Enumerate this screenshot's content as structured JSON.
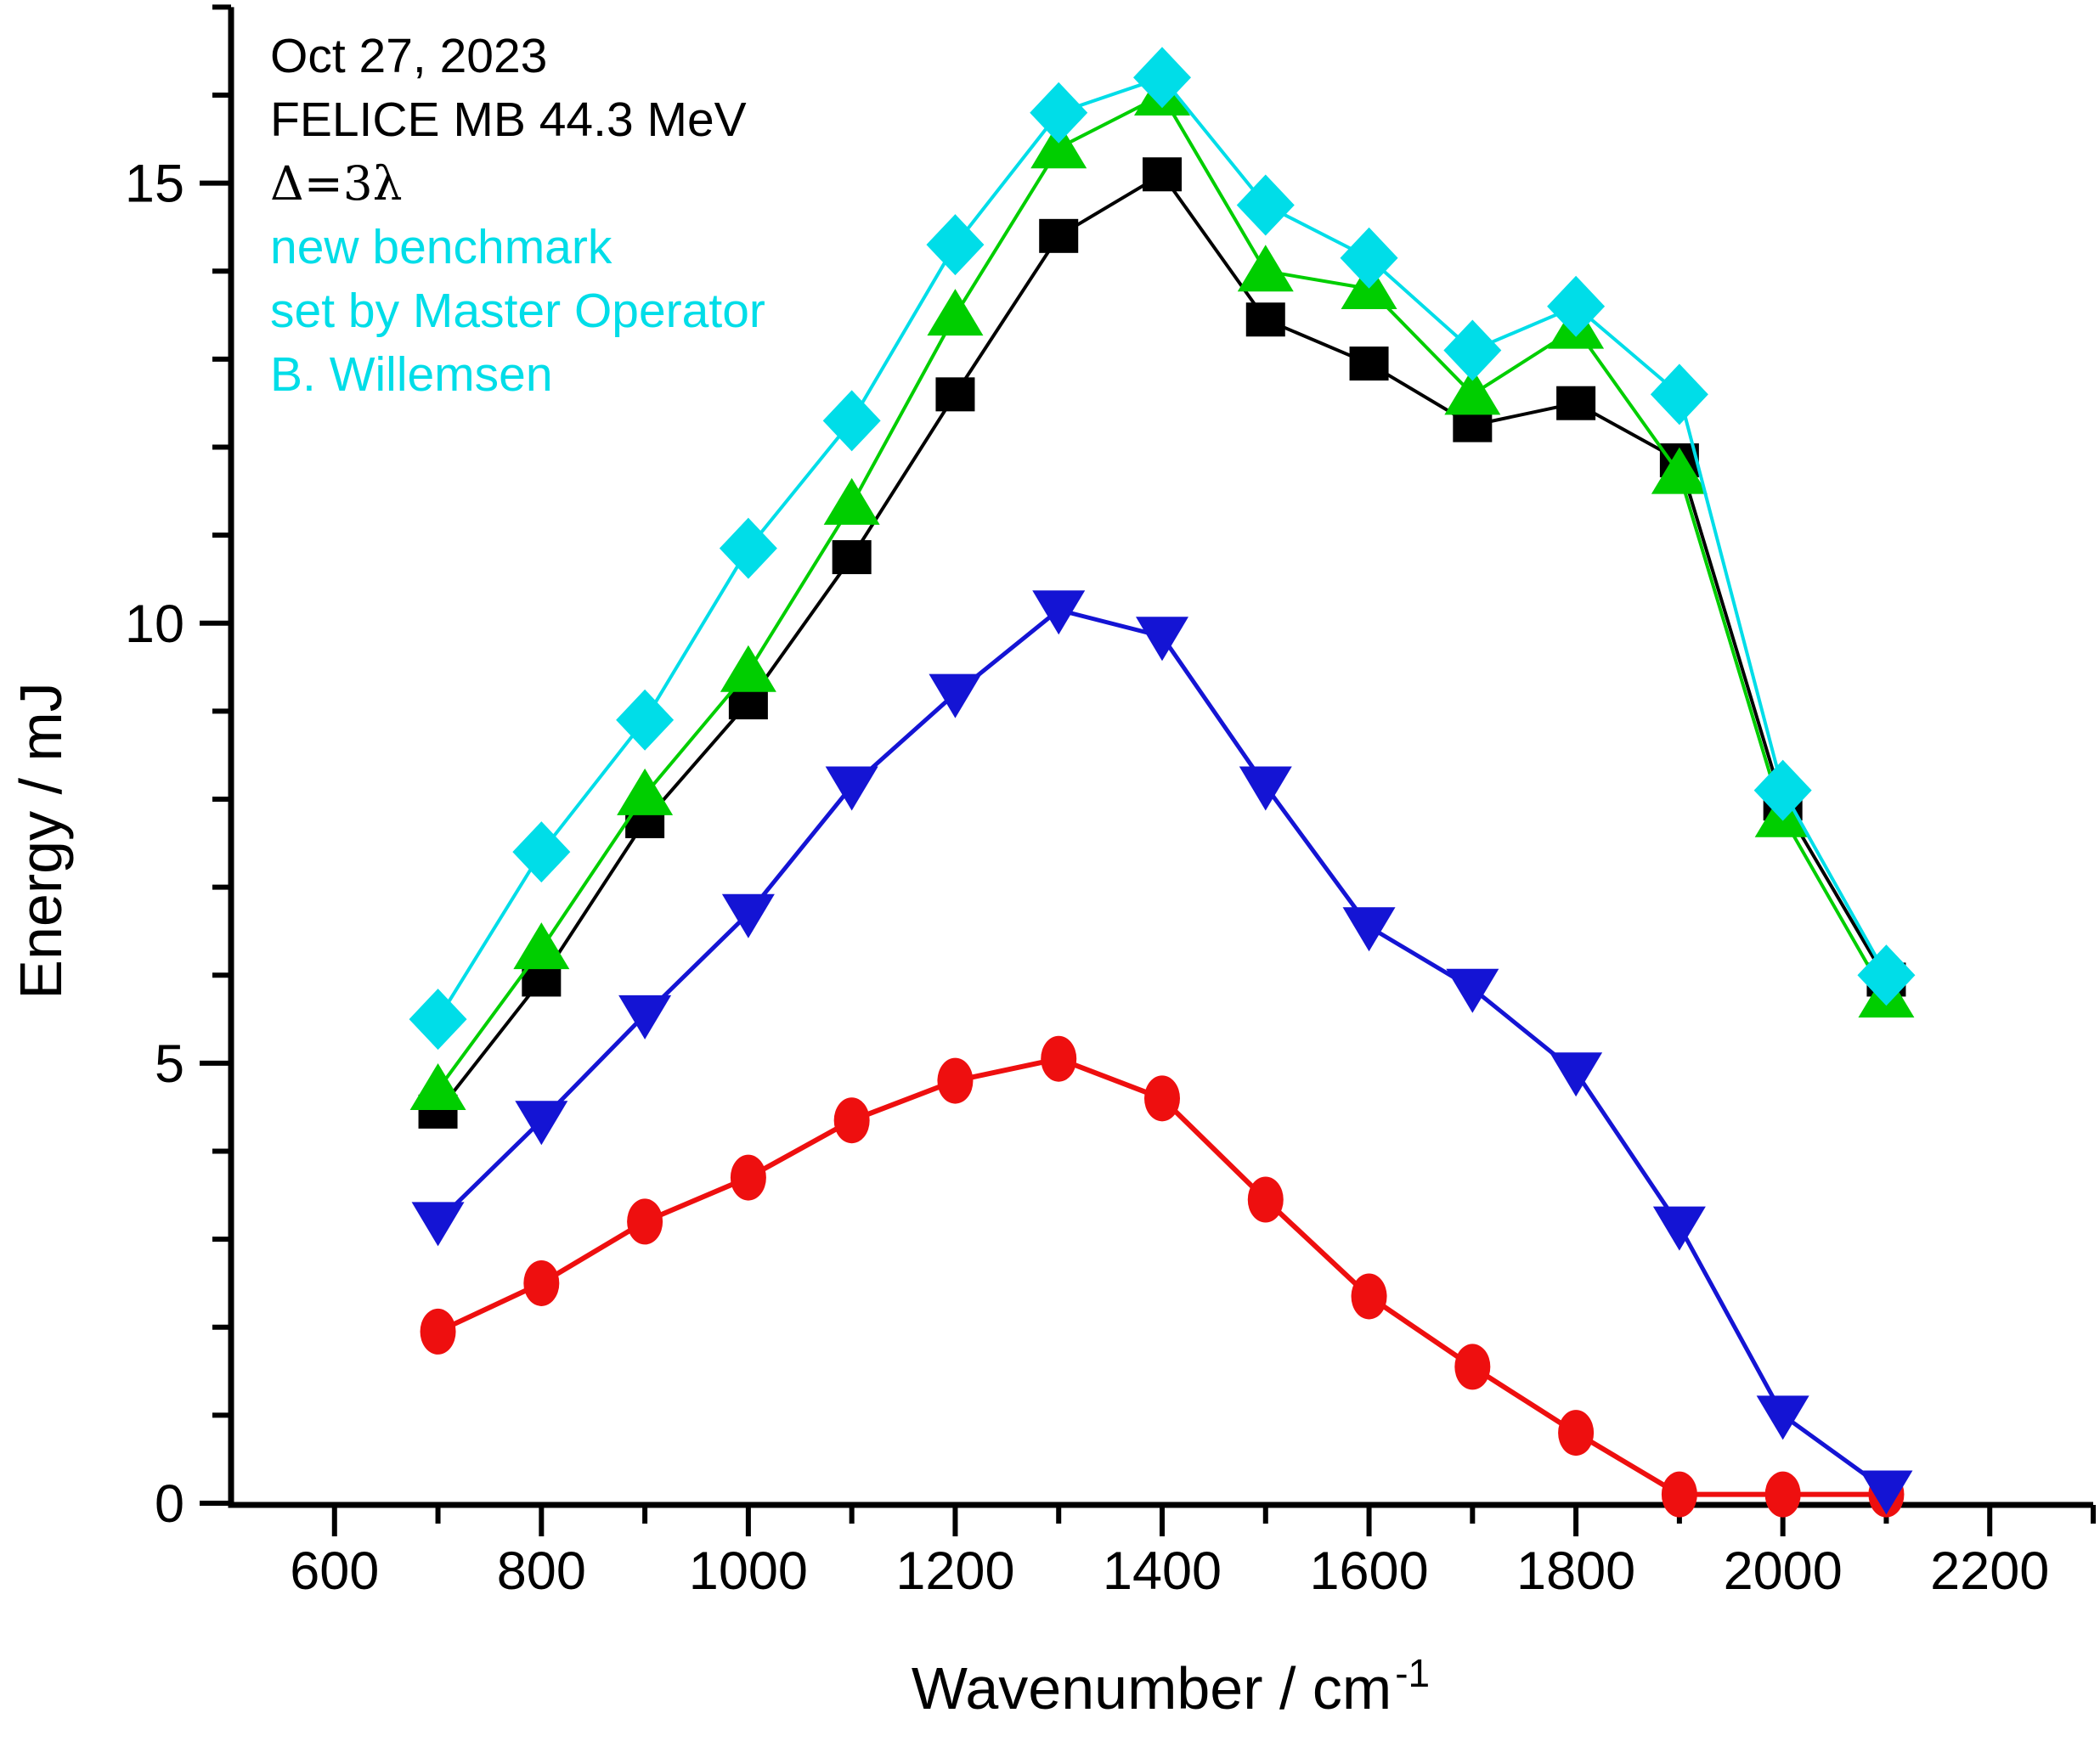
{
  "chart_data": {
    "type": "line",
    "title": "",
    "xlabel": "Wavenumber / cm",
    "xlabel_sup": "-1",
    "ylabel": "Energy / mJ",
    "x_range": [
      500,
      2300
    ],
    "y_range": [
      0,
      17
    ],
    "grid": false,
    "legend": "none",
    "x_ticks_major": [
      600,
      800,
      1000,
      1200,
      1400,
      1600,
      1800,
      2000,
      2200
    ],
    "y_ticks_major": [
      0,
      5,
      10,
      15
    ],
    "x_minor_step": 100,
    "y_minor_step": 1,
    "x": [
      700,
      800,
      900,
      1000,
      1100,
      1200,
      1300,
      1400,
      1500,
      1600,
      1700,
      1800,
      1900,
      2000,
      2100
    ],
    "series": [
      {
        "name": "red-circle",
        "marker": "circle",
        "color": "#ee0f0f",
        "values": [
          1.95,
          2.5,
          3.2,
          3.7,
          4.35,
          4.8,
          5.05,
          4.6,
          3.45,
          2.35,
          1.55,
          0.8,
          0.1,
          0.1,
          0.1
        ]
      },
      {
        "name": "blue-triangle-down",
        "marker": "triangle-down",
        "color": "#1414d4",
        "values": [
          3.2,
          4.35,
          5.55,
          6.7,
          8.15,
          9.2,
          10.15,
          9.85,
          8.15,
          6.55,
          5.85,
          4.9,
          3.15,
          1.0,
          0.15
        ]
      },
      {
        "name": "black-square",
        "marker": "square",
        "color": "#000000",
        "values": [
          4.45,
          5.95,
          7.75,
          9.1,
          10.75,
          12.6,
          14.4,
          15.1,
          13.45,
          12.95,
          12.25,
          12.5,
          11.85,
          7.95,
          5.95
        ]
      },
      {
        "name": "green-triangle-up",
        "marker": "triangle-up",
        "color": "#00ce00",
        "values": [
          4.7,
          6.3,
          8.05,
          9.45,
          11.35,
          13.5,
          15.4,
          16.0,
          14.0,
          13.8,
          12.6,
          13.35,
          11.7,
          7.8,
          5.75
        ]
      },
      {
        "name": "cyan-diamond",
        "marker": "diamond",
        "color": "#00dde8",
        "values": [
          5.5,
          7.4,
          8.9,
          10.85,
          12.3,
          14.3,
          15.8,
          16.2,
          14.75,
          14.15,
          13.1,
          13.6,
          12.6,
          8.1,
          6.0
        ]
      }
    ]
  },
  "annotations": {
    "line1": {
      "text": "Oct 27, 2023",
      "color": "#000000"
    },
    "line2": {
      "text": "FELICE MB 44.3 MeV",
      "color": "#000000"
    },
    "line3": {
      "text": "Δ=3λ",
      "color": "#000000"
    },
    "line4": {
      "text": "new benchmark",
      "color": "#00dde8"
    },
    "line5": {
      "text": "set by Master Operator",
      "color": "#00dde8"
    },
    "line6": {
      "text": "B. Willemsen",
      "color": "#00dde8"
    }
  },
  "axes": {
    "x_label": "Wavenumber / cm",
    "x_label_sup": "-1",
    "y_label": "Energy / mJ"
  }
}
